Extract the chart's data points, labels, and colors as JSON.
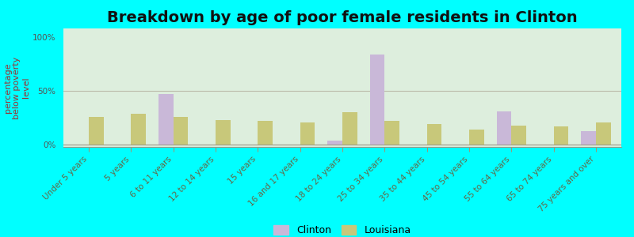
{
  "title": "Breakdown by age of poor female residents in Clinton",
  "ylabel": "percentage\nbelow poverty\nlevel",
  "categories": [
    "Under 5 years",
    "5 years",
    "6 to 11 years",
    "12 to 14 years",
    "15 years",
    "16 and 17 years",
    "18 to 24 years",
    "25 to 34 years",
    "35 to 44 years",
    "45 to 54 years",
    "55 to 64 years",
    "65 to 74 years",
    "75 years and over"
  ],
  "clinton_values": [
    0,
    0,
    47,
    0,
    0,
    0,
    4,
    84,
    0,
    0,
    31,
    0,
    13
  ],
  "louisiana_values": [
    26,
    29,
    26,
    23,
    22,
    21,
    30,
    22,
    19,
    14,
    18,
    17,
    21
  ],
  "clinton_color": "#c9b8d8",
  "louisiana_color": "#c8c87a",
  "background_color": "#ddeedd",
  "yticks": [
    0,
    50,
    100
  ],
  "ytick_labels": [
    "0%",
    "50%",
    "100%"
  ],
  "ylim": [
    -2,
    108
  ],
  "legend_clinton": "Clinton",
  "legend_louisiana": "Louisiana",
  "bar_width": 0.35,
  "title_fontsize": 14,
  "label_fontsize": 8,
  "tick_fontsize": 7.5,
  "outer_bg": "#00ffff"
}
